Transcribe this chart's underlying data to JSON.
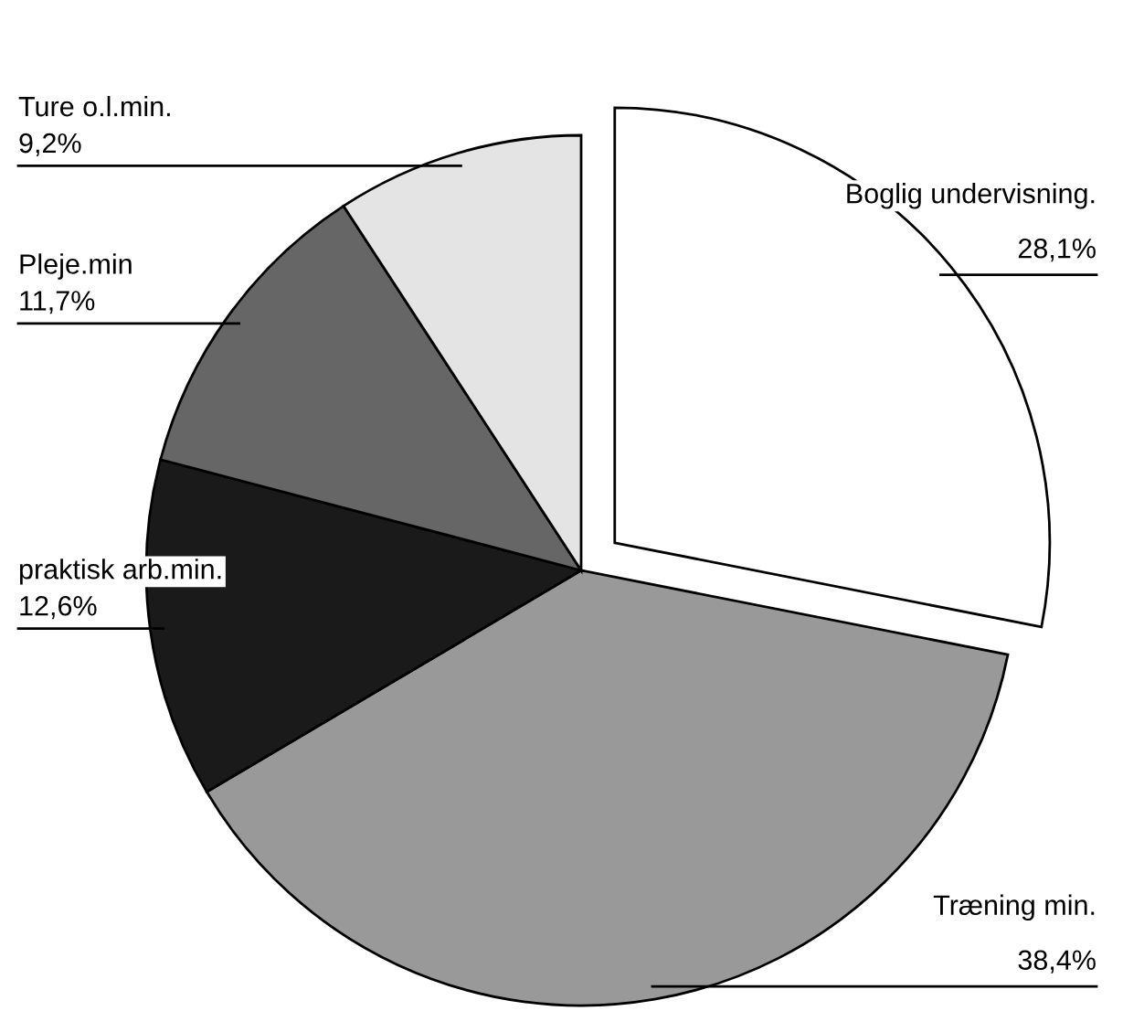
{
  "chart_data": {
    "type": "pie",
    "categories": [
      "Boglig undervisning.",
      "Træning min.",
      "praktisk arb.min.",
      "Pleje.min",
      "Ture o.l.min."
    ],
    "values": [
      28.1,
      38.4,
      12.6,
      11.7,
      9.2
    ],
    "value_labels": [
      "28,1%",
      "38,4%",
      "12,6%",
      "11,7%",
      "9,2%"
    ],
    "colors": [
      "#ffffff",
      "#999999",
      "#1a1a1a",
      "#666666",
      "#e4e4e4"
    ],
    "legend": false
  }
}
